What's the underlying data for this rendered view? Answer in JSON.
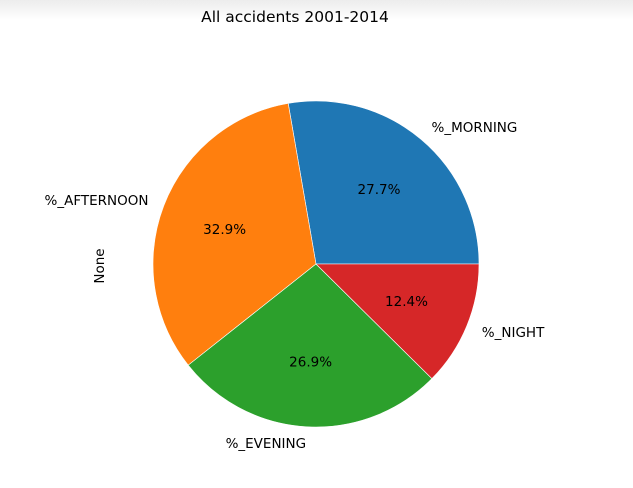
{
  "chart_data": {
    "type": "pie",
    "title": "All accidents 2001-2014",
    "ylabel": "None",
    "start_angle_deg": 0,
    "counterclockwise": true,
    "slices": [
      {
        "label": "%_MORNING",
        "value": 27.7,
        "pct_label": "27.7%",
        "color": "#1f77b4"
      },
      {
        "label": "%_AFTERNOON",
        "value": 32.9,
        "pct_label": "32.9%",
        "color": "#ff7f0e"
      },
      {
        "label": "%_EVENING",
        "value": 26.9,
        "pct_label": "26.9%",
        "color": "#2ca02c"
      },
      {
        "label": "%_NIGHT",
        "value": 12.4,
        "pct_label": "12.4%",
        "color": "#d62728"
      }
    ]
  }
}
